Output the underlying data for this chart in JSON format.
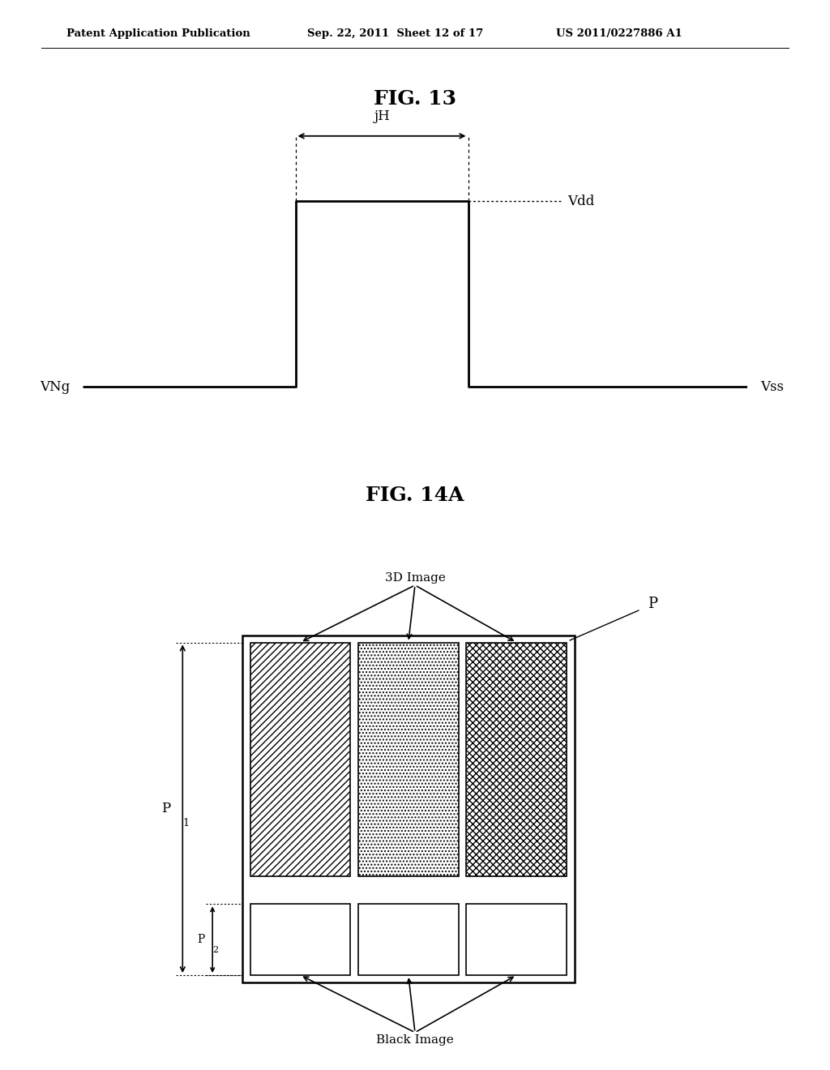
{
  "background_color": "#ffffff",
  "header_left": "Patent Application Publication",
  "header_center": "Sep. 22, 2011  Sheet 12 of 17",
  "header_right": "US 2011/0227886 A1",
  "fig13_title": "FIG. 13",
  "fig14a_title": "FIG. 14A"
}
